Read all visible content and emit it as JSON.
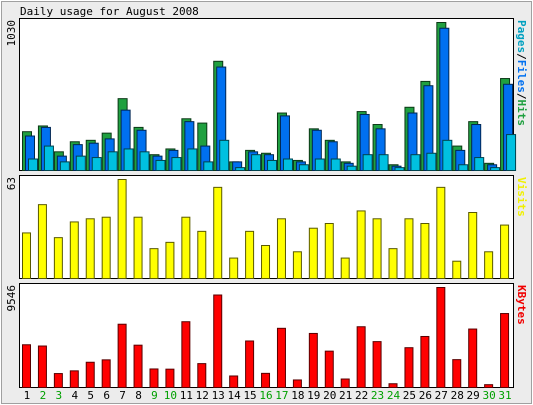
{
  "chart_data": {
    "type": "bar",
    "title": "Daily usage for August 2008",
    "categories": [
      "1",
      "2",
      "3",
      "4",
      "5",
      "6",
      "7",
      "8",
      "9",
      "10",
      "11",
      "12",
      "13",
      "14",
      "15",
      "16",
      "17",
      "18",
      "19",
      "20",
      "21",
      "22",
      "23",
      "24",
      "25",
      "26",
      "27",
      "28",
      "29",
      "30",
      "31"
    ],
    "weekend_days": [
      "2",
      "3",
      "9",
      "10",
      "16",
      "17",
      "23",
      "24",
      "30",
      "31"
    ],
    "panels": [
      {
        "id": "hits",
        "ymax_label": "1030",
        "ymax": 1030,
        "legend": [
          "Pages",
          "/",
          "Files",
          "/",
          "Hits"
        ],
        "legend_colors": [
          "#00a0c0",
          "#000000",
          "#0070f0",
          "#000000",
          "#20a040"
        ],
        "series": [
          {
            "name": "Hits",
            "color": "#20a040",
            "values": [
              270,
              310,
              130,
              200,
              210,
              260,
              500,
              300,
              110,
              150,
              360,
              330,
              760,
              60,
              140,
              120,
              400,
              70,
              290,
              210,
              60,
              410,
              320,
              40,
              440,
              620,
              1030,
              170,
              340,
              50,
              640
            ]
          },
          {
            "name": "Files",
            "color": "#0070f0",
            "values": [
              240,
              300,
              100,
              180,
              190,
              220,
              420,
              280,
              100,
              140,
              340,
              170,
              720,
              60,
              130,
              110,
              380,
              60,
              280,
              200,
              50,
              390,
              290,
              30,
              400,
              590,
              990,
              140,
              320,
              40,
              600
            ]
          },
          {
            "name": "Pages",
            "color": "#00c0e0",
            "values": [
              80,
              170,
              60,
              100,
              90,
              130,
              150,
              130,
              70,
              90,
              150,
              60,
              210,
              20,
              110,
              70,
              80,
              40,
              80,
              80,
              30,
              110,
              110,
              20,
              110,
              120,
              210,
              40,
              90,
              20,
              250
            ]
          }
        ]
      },
      {
        "id": "visits",
        "ymax_label": "63",
        "ymax": 63,
        "legend": [
          "Visits"
        ],
        "legend_colors": [
          "#f0f000"
        ],
        "series": [
          {
            "name": "Visits",
            "color": "#ffff00",
            "values": [
              29,
              47,
              26,
              36,
              38,
              39,
              63,
              39,
              19,
              23,
              39,
              30,
              58,
              13,
              30,
              21,
              38,
              17,
              32,
              35,
              13,
              43,
              38,
              19,
              38,
              35,
              58,
              11,
              42,
              17,
              34
            ]
          }
        ]
      },
      {
        "id": "kbytes",
        "ymax_label": "9546",
        "ymax": 9546,
        "legend": [
          "KBytes"
        ],
        "legend_colors": [
          "#f00000"
        ],
        "series": [
          {
            "name": "KBytes",
            "color": "#ff0000",
            "values": [
              4080,
              3960,
              1330,
              1590,
              2410,
              2640,
              6040,
              4040,
              1770,
              1750,
              6280,
              2280,
              8830,
              1100,
              4440,
              1350,
              5650,
              720,
              5160,
              3470,
              810,
              5800,
              4380,
              360,
              3800,
              4870,
              9546,
              2660,
              5580,
              270,
              7060
            ]
          }
        ]
      }
    ]
  }
}
